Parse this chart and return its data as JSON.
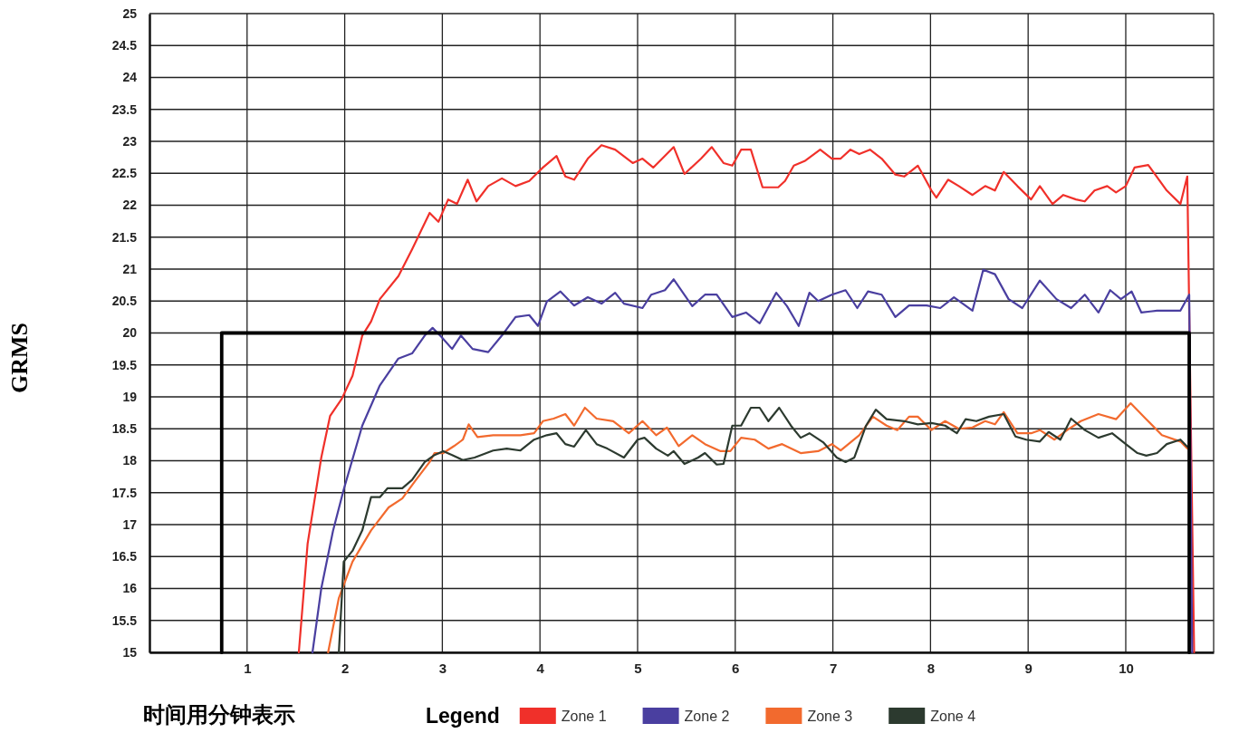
{
  "chart_data": {
    "type": "line",
    "xlabel": "时间用分钟表示",
    "ylabel": "GRMS",
    "legend_title": "Legend",
    "legend": "bottom",
    "grid": true,
    "marker": "none",
    "line_style": "solid",
    "xlim": [
      0,
      10.9
    ],
    "xticks": [
      1,
      2,
      3,
      4,
      5,
      6,
      7,
      8,
      9,
      10
    ],
    "ylim": [
      15,
      25
    ],
    "yticks": [
      15,
      15.5,
      16,
      16.5,
      17,
      17.5,
      18,
      18.5,
      19,
      19.5,
      20,
      20.5,
      21,
      21.5,
      22,
      22.5,
      23,
      23.5,
      24,
      24.5,
      25
    ],
    "series": [
      {
        "color": "#000000",
        "x": [
          0.74,
          0.74,
          10.65,
          10.65
        ],
        "values": [
          15,
          20,
          20,
          15
        ]
      },
      {
        "name": "Zone 1",
        "color": "#f0302a",
        "x": [
          1.53,
          1.62,
          1.76,
          1.85,
          1.97,
          2.08,
          2.18,
          2.27,
          2.36,
          2.55,
          2.69,
          2.87,
          2.96,
          3.06,
          3.15,
          3.26,
          3.35,
          3.47,
          3.61,
          3.75,
          3.89,
          4.03,
          4.17,
          4.26,
          4.35,
          4.49,
          4.63,
          4.77,
          4.95,
          5.05,
          5.16,
          5.37,
          5.48,
          5.65,
          5.76,
          5.88,
          5.97,
          6.06,
          6.16,
          6.28,
          6.44,
          6.51,
          6.6,
          6.71,
          6.87,
          6.99,
          7.08,
          7.18,
          7.27,
          7.38,
          7.5,
          7.64,
          7.73,
          7.87,
          8.01,
          8.06,
          8.18,
          8.29,
          8.43,
          8.56,
          8.66,
          8.75,
          8.89,
          9.03,
          9.12,
          9.25,
          9.36,
          9.49,
          9.58,
          9.68,
          9.81,
          9.9,
          10,
          10.09,
          10.23,
          10.42,
          10.56,
          10.63,
          10.7
        ],
        "values": [
          15,
          16.7,
          18.05,
          18.7,
          18.97,
          19.33,
          19.96,
          20.18,
          20.53,
          20.89,
          21.31,
          21.88,
          21.74,
          22.09,
          22.02,
          22.4,
          22.06,
          22.3,
          22.42,
          22.3,
          22.38,
          22.59,
          22.77,
          22.45,
          22.4,
          22.73,
          22.94,
          22.87,
          22.66,
          22.73,
          22.59,
          22.91,
          22.49,
          22.73,
          22.91,
          22.66,
          22.62,
          22.87,
          22.87,
          22.28,
          22.28,
          22.38,
          22.62,
          22.69,
          22.87,
          22.73,
          22.73,
          22.87,
          22.8,
          22.87,
          22.73,
          22.48,
          22.45,
          22.62,
          22.23,
          22.12,
          22.4,
          22.3,
          22.16,
          22.3,
          22.23,
          22.52,
          22.3,
          22.09,
          22.3,
          22.02,
          22.16,
          22.09,
          22.06,
          22.23,
          22.3,
          22.2,
          22.3,
          22.59,
          22.63,
          22.23,
          22.02,
          22.45,
          15
        ]
      },
      {
        "name": "Zone 2",
        "color": "#4a3fa0",
        "x": [
          1.67,
          1.76,
          1.88,
          1.99,
          2.18,
          2.36,
          2.55,
          2.69,
          2.82,
          2.9,
          2.99,
          3.1,
          3.19,
          3.31,
          3.47,
          3.61,
          3.75,
          3.89,
          3.98,
          4.07,
          4.21,
          4.35,
          4.49,
          4.63,
          4.77,
          4.86,
          5.05,
          5.14,
          5.28,
          5.37,
          5.56,
          5.69,
          5.81,
          5.97,
          6.11,
          6.25,
          6.42,
          6.53,
          6.65,
          6.76,
          6.85,
          6.99,
          7.13,
          7.25,
          7.36,
          7.5,
          7.64,
          7.78,
          7.96,
          8.1,
          8.24,
          8.43,
          8.54,
          8.66,
          8.8,
          8.94,
          9.12,
          9.29,
          9.44,
          9.58,
          9.72,
          9.84,
          9.95,
          10.06,
          10.16,
          10.32,
          10.56,
          10.65,
          10.68
        ],
        "values": [
          15,
          16,
          16.9,
          17.55,
          18.55,
          19.18,
          19.6,
          19.68,
          19.96,
          20.08,
          19.94,
          19.75,
          19.96,
          19.75,
          19.7,
          19.96,
          20.25,
          20.28,
          20.11,
          20.49,
          20.65,
          20.43,
          20.56,
          20.46,
          20.63,
          20.46,
          20.39,
          20.6,
          20.67,
          20.84,
          20.42,
          20.6,
          20.6,
          20.25,
          20.32,
          20.15,
          20.63,
          20.42,
          20.11,
          20.63,
          20.5,
          20.6,
          20.67,
          20.39,
          20.65,
          20.6,
          20.25,
          20.43,
          20.43,
          20.39,
          20.56,
          20.35,
          20.99,
          20.92,
          20.53,
          20.39,
          20.82,
          20.53,
          20.39,
          20.6,
          20.32,
          20.67,
          20.53,
          20.65,
          20.32,
          20.35,
          20.35,
          20.6,
          15
        ]
      },
      {
        "name": "Zone 3",
        "color": "#f26a2e",
        "x": [
          1.83,
          1.94,
          2.08,
          2.27,
          2.45,
          2.59,
          2.73,
          2.87,
          2.92,
          3.01,
          3.12,
          3.21,
          3.27,
          3.36,
          3.52,
          3.66,
          3.8,
          3.94,
          4.03,
          4.14,
          4.26,
          4.35,
          4.46,
          4.58,
          4.75,
          4.91,
          5.05,
          5.19,
          5.3,
          5.42,
          5.56,
          5.69,
          5.85,
          5.95,
          6.06,
          6.2,
          6.34,
          6.48,
          6.67,
          6.85,
          6.99,
          7.08,
          7.27,
          7.41,
          7.55,
          7.66,
          7.78,
          7.87,
          8.01,
          8.15,
          8.29,
          8.43,
          8.56,
          8.66,
          8.75,
          8.89,
          9.03,
          9.12,
          9.27,
          9.4,
          9.54,
          9.72,
          9.9,
          10.05,
          10.21,
          10.37,
          10.56,
          10.63
        ],
        "values": [
          15,
          15.85,
          16.42,
          16.91,
          17.27,
          17.41,
          17.7,
          17.98,
          18.12,
          18.12,
          18.23,
          18.33,
          18.57,
          18.37,
          18.4,
          18.4,
          18.4,
          18.43,
          18.62,
          18.66,
          18.73,
          18.55,
          18.83,
          18.66,
          18.62,
          18.43,
          18.62,
          18.4,
          18.52,
          18.23,
          18.4,
          18.26,
          18.15,
          18.15,
          18.36,
          18.33,
          18.19,
          18.26,
          18.12,
          18.15,
          18.26,
          18.16,
          18.4,
          18.69,
          18.55,
          18.48,
          18.69,
          18.69,
          18.48,
          18.62,
          18.5,
          18.52,
          18.62,
          18.57,
          18.76,
          18.43,
          18.43,
          18.48,
          18.33,
          18.48,
          18.62,
          18.73,
          18.65,
          18.9,
          18.65,
          18.4,
          18.3,
          18.19
        ]
      },
      {
        "name": "Zone 4",
        "color": "#2c3a2f",
        "x": [
          1.94,
          1.99,
          2.08,
          2.18,
          2.27,
          2.36,
          2.44,
          2.59,
          2.69,
          2.82,
          2.92,
          3.01,
          3.1,
          3.21,
          3.33,
          3.52,
          3.66,
          3.8,
          3.94,
          4.07,
          4.17,
          4.26,
          4.35,
          4.47,
          4.58,
          4.69,
          4.86,
          5,
          5.07,
          5.19,
          5.31,
          5.37,
          5.48,
          5.62,
          5.69,
          5.81,
          5.88,
          5.97,
          6.06,
          6.16,
          6.25,
          6.34,
          6.45,
          6.57,
          6.67,
          6.76,
          6.9,
          7.04,
          7.13,
          7.22,
          7.34,
          7.44,
          7.55,
          7.73,
          7.87,
          8.01,
          8.15,
          8.27,
          8.36,
          8.47,
          8.6,
          8.75,
          8.87,
          8.98,
          9.12,
          9.21,
          9.33,
          9.44,
          9.58,
          9.72,
          9.86,
          10,
          10.12,
          10.21,
          10.32,
          10.42,
          10.56,
          10.63
        ],
        "values": [
          15,
          16.42,
          16.59,
          16.91,
          17.43,
          17.43,
          17.57,
          17.57,
          17.7,
          17.98,
          18.09,
          18.15,
          18.09,
          18.01,
          18.05,
          18.16,
          18.19,
          18.16,
          18.33,
          18.4,
          18.43,
          18.26,
          18.22,
          18.48,
          18.26,
          18.19,
          18.05,
          18.33,
          18.36,
          18.19,
          18.08,
          18.15,
          17.95,
          18.05,
          18.12,
          17.94,
          17.95,
          18.55,
          18.55,
          18.83,
          18.83,
          18.62,
          18.83,
          18.55,
          18.36,
          18.43,
          18.29,
          18.05,
          17.98,
          18.05,
          18.55,
          18.8,
          18.65,
          18.62,
          18.57,
          18.59,
          18.55,
          18.43,
          18.65,
          18.62,
          18.69,
          18.73,
          18.38,
          18.33,
          18.3,
          18.45,
          18.33,
          18.66,
          18.48,
          18.36,
          18.43,
          18.26,
          18.12,
          18.08,
          18.12,
          18.26,
          18.33,
          18.22
        ]
      }
    ]
  }
}
